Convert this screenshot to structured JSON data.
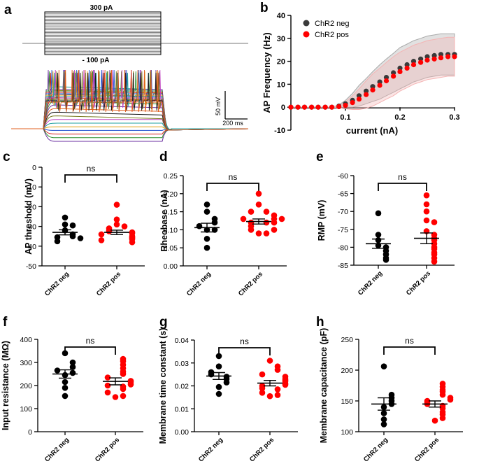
{
  "figure": {
    "panel_letters": [
      "a",
      "b",
      "c",
      "d",
      "e",
      "f",
      "g",
      "h"
    ],
    "group_labels": [
      "ChR2 neg",
      "ChR2 pos"
    ],
    "group_colors": [
      "#000000",
      "#ff0000"
    ],
    "significance": "ns"
  },
  "chart_data": [
    {
      "panel": "a",
      "type": "line",
      "title": "",
      "step_top_label": "300 pA",
      "step_bottom_label": "- 100 pA",
      "scalebar_v_label": "50 mV",
      "scalebar_h_label": "200 ms",
      "step_current_range_pA": [
        -100,
        300
      ],
      "trace_colors": [
        "#6b2fa0",
        "#2f8f2f",
        "#d42020",
        "#2050d0",
        "#e0a010",
        "#20a0a0",
        "#c03fc0",
        "#7a7a20",
        "#1a1a1a",
        "#e06020"
      ]
    },
    {
      "panel": "b",
      "type": "line",
      "xlabel": "current (nA)",
      "ylabel": "AP Frequency (Hz)",
      "xlim": [
        0,
        0.3
      ],
      "ylim": [
        -10,
        40
      ],
      "xticks": [
        "0.1",
        "0.2",
        "0.3"
      ],
      "yticks": [
        "-10",
        "0",
        "10",
        "20",
        "30",
        "40"
      ],
      "legend_position": "top-left",
      "x": [
        0,
        0.013,
        0.025,
        0.038,
        0.05,
        0.063,
        0.075,
        0.088,
        0.1,
        0.113,
        0.125,
        0.138,
        0.15,
        0.163,
        0.175,
        0.188,
        0.2,
        0.213,
        0.225,
        0.238,
        0.25,
        0.263,
        0.275,
        0.288,
        0.3
      ],
      "series": [
        {
          "name": "ChR2 neg",
          "color": "#3a3a3a",
          "band_color": "#aaaaaa",
          "values": [
            0,
            0,
            0,
            0,
            0,
            0,
            0,
            0.5,
            1.5,
            3,
            5,
            7,
            9,
            11,
            13,
            15,
            17,
            18.5,
            20,
            21,
            22,
            22.5,
            23,
            23,
            23
          ],
          "sem": [
            0,
            0,
            0,
            0,
            0,
            0,
            0,
            0.5,
            1.5,
            3,
            4.5,
            5.5,
            6.5,
            7.5,
            8,
            8.5,
            9,
            9,
            9,
            9,
            9,
            9,
            9,
            9,
            9
          ]
        },
        {
          "name": "ChR2 pos",
          "color": "#ff0000",
          "band_color": "#f4b4b4",
          "values": [
            0,
            0,
            0,
            0,
            0,
            0,
            0,
            0.2,
            0.8,
            2,
            3.5,
            5.5,
            7.5,
            9.5,
            11.5,
            13.5,
            15.5,
            17,
            18.5,
            19.5,
            20.5,
            21,
            21.5,
            22,
            22
          ],
          "sem": [
            0,
            0,
            0,
            0,
            0,
            0,
            0,
            0.4,
            1.5,
            3,
            4.5,
            6,
            7,
            7.5,
            8,
            8.5,
            8.5,
            8.5,
            8.5,
            8.5,
            8.5,
            8.5,
            8.5,
            8.5,
            8.5
          ]
        }
      ]
    },
    {
      "panel": "c",
      "type": "scatter",
      "ylabel": "AP threshold (mV)",
      "ylim": [
        -50,
        0
      ],
      "yticks": [
        "0",
        "-10",
        "-20",
        "-30",
        "-40",
        "-50"
      ],
      "categories": [
        "ChR2 neg",
        "ChR2 pos"
      ],
      "series": [
        {
          "name": "ChR2 neg",
          "color": "#000000",
          "values": [
            -25.5,
            -29,
            -29.5,
            -32,
            -34,
            -35,
            -35.5,
            -36,
            -37.5
          ],
          "mean": -33,
          "sem": 1.3
        },
        {
          "name": "ChR2 pos",
          "color": "#ff0000",
          "values": [
            -19,
            -26.5,
            -29,
            -30,
            -31,
            -32,
            -32.5,
            -33,
            -33.5,
            -34,
            -35,
            -35.5,
            -36,
            -36.5,
            -37,
            -38
          ],
          "mean": -33,
          "sem": 1.1
        }
      ]
    },
    {
      "panel": "d",
      "type": "scatter",
      "ylabel": "Rheobase (nA)",
      "ylim": [
        0,
        0.25
      ],
      "yticks": [
        "0.00",
        "0.05",
        "0.10",
        "0.15",
        "0.20",
        "0.25"
      ],
      "categories": [
        "ChR2 neg",
        "ChR2 pos"
      ],
      "series": [
        {
          "name": "ChR2 neg",
          "color": "#000000",
          "values": [
            0.05,
            0.075,
            0.1,
            0.1,
            0.11,
            0.12,
            0.13,
            0.15,
            0.17
          ],
          "mean": 0.106,
          "sem": 0.012
        },
        {
          "name": "ChR2 pos",
          "color": "#ff0000",
          "values": [
            0.09,
            0.09,
            0.1,
            0.1,
            0.11,
            0.12,
            0.12,
            0.12,
            0.13,
            0.13,
            0.13,
            0.14,
            0.15,
            0.15,
            0.17,
            0.2
          ],
          "mean": 0.123,
          "sem": 0.007
        }
      ]
    },
    {
      "panel": "e",
      "type": "scatter",
      "ylabel": "RMP (mV)",
      "ylim": [
        -85,
        -60
      ],
      "yticks": [
        "-60",
        "-65",
        "-70",
        "-75",
        "-80",
        "-85"
      ],
      "categories": [
        "ChR2 neg",
        "ChR2 pos"
      ],
      "series": [
        {
          "name": "ChR2 neg",
          "color": "#000000",
          "values": [
            -70.5,
            -76.5,
            -78,
            -79.5,
            -80,
            -81,
            -82,
            -83,
            -83.5
          ],
          "mean": -79,
          "sem": 1.3
        },
        {
          "name": "ChR2 pos",
          "color": "#ff0000",
          "values": [
            -65.5,
            -68,
            -70,
            -72.5,
            -73,
            -75.5,
            -76.5,
            -77.5,
            -78,
            -79,
            -80,
            -80.5,
            -81.5,
            -82,
            -83,
            -84
          ],
          "mean": -77.5,
          "sem": 1.5
        }
      ]
    },
    {
      "panel": "f",
      "type": "scatter",
      "ylabel": "Input resistance (MΩ)",
      "ylim": [
        0,
        400
      ],
      "yticks": [
        "0",
        "100",
        "200",
        "300",
        "400"
      ],
      "categories": [
        "ChR2 neg",
        "ChR2 pos"
      ],
      "series": [
        {
          "name": "ChR2 neg",
          "color": "#000000",
          "values": [
            155,
            190,
            215,
            245,
            255,
            265,
            280,
            300,
            340
          ],
          "mean": 250,
          "sem": 18
        },
        {
          "name": "ChR2 pos",
          "color": "#ff0000",
          "values": [
            150,
            155,
            170,
            185,
            195,
            200,
            205,
            215,
            220,
            235,
            250,
            260,
            275,
            290,
            305,
            315
          ],
          "mean": 218,
          "sem": 15
        }
      ]
    },
    {
      "panel": "g",
      "type": "scatter",
      "ylabel": "Membrane time constant (s)",
      "ylim": [
        0,
        0.04
      ],
      "yticks": [
        "0.00",
        "0.01",
        "0.02",
        "0.03",
        "0.04"
      ],
      "categories": [
        "ChR2 neg",
        "ChR2 pos"
      ],
      "series": [
        {
          "name": "ChR2 neg",
          "color": "#000000",
          "values": [
            0.0165,
            0.0195,
            0.0215,
            0.023,
            0.024,
            0.025,
            0.026,
            0.0285,
            0.033
          ],
          "mean": 0.0243,
          "sem": 0.0015
        },
        {
          "name": "ChR2 pos",
          "color": "#ff0000",
          "values": [
            0.0155,
            0.016,
            0.017,
            0.0185,
            0.019,
            0.02,
            0.0205,
            0.021,
            0.022,
            0.0225,
            0.023,
            0.024,
            0.025,
            0.027,
            0.0285,
            0.031
          ],
          "mean": 0.0212,
          "sem": 0.0012
        }
      ]
    },
    {
      "panel": "h",
      "type": "scatter",
      "ylabel": "Membrane capacitance (pF)",
      "ylim": [
        100,
        250
      ],
      "yticks": [
        "100",
        "150",
        "200",
        "250"
      ],
      "categories": [
        "ChR2 neg",
        "ChR2 pos"
      ],
      "series": [
        {
          "name": "ChR2 neg",
          "color": "#000000",
          "values": [
            112,
            120,
            130,
            140,
            145,
            150,
            155,
            160,
            206
          ],
          "mean": 145,
          "sem": 10
        },
        {
          "name": "ChR2 pos",
          "color": "#ff0000",
          "values": [
            118,
            122,
            128,
            132,
            138,
            142,
            145,
            148,
            150,
            152,
            155,
            160,
            165,
            168,
            173,
            178
          ],
          "mean": 145,
          "sem": 5
        }
      ]
    }
  ]
}
